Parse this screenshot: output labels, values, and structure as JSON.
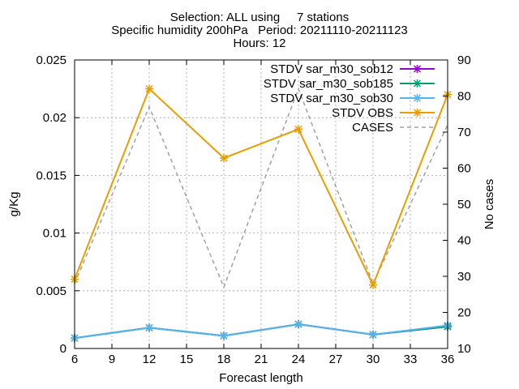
{
  "chart_data": {
    "type": "line",
    "title_lines": [
      "Selection: ALL using     7 stations",
      "Specific humidity 200hPa   Period: 20211110-20211123",
      "Hours: 12"
    ],
    "xlabel": "Forecast length",
    "ylabel": "g/Kg",
    "y2label": "No cases",
    "x": [
      6,
      12,
      18,
      24,
      30,
      36
    ],
    "xlim": [
      6,
      36
    ],
    "xticks": [
      6,
      9,
      12,
      15,
      18,
      21,
      24,
      27,
      30,
      33,
      36
    ],
    "ylim": [
      0,
      0.025
    ],
    "yticks": [
      0,
      0.005,
      0.01,
      0.015,
      0.02,
      0.025
    ],
    "ytick_labels": [
      "0",
      "0.005",
      "0.01",
      "0.015",
      "0.02",
      "0.025"
    ],
    "y2lim": [
      10,
      90
    ],
    "y2ticks": [
      10,
      20,
      30,
      40,
      50,
      60,
      70,
      80,
      90
    ],
    "grid": true,
    "legend_position": "top-right",
    "series": [
      {
        "name": "STDV sar_m30_sob12",
        "axis": "y",
        "color": "#9400d3",
        "marker": "x",
        "dash": false,
        "values": [
          0.0009,
          0.0018,
          0.0011,
          0.0021,
          0.0012,
          0.0019
        ]
      },
      {
        "name": "STDV sar_m30_sob185",
        "axis": "y",
        "color": "#009e73",
        "marker": "x",
        "dash": false,
        "values": [
          0.0009,
          0.0018,
          0.0011,
          0.0021,
          0.0012,
          0.0019
        ]
      },
      {
        "name": "STDV sar_m30_sob30",
        "axis": "y",
        "color": "#56b4e9",
        "marker": "x",
        "dash": false,
        "values": [
          0.0009,
          0.0018,
          0.0011,
          0.0021,
          0.0012,
          0.002
        ]
      },
      {
        "name": "STDV OBS",
        "axis": "y",
        "color": "#e69f00",
        "marker": "x",
        "dash": false,
        "values": [
          0.006,
          0.0225,
          0.0165,
          0.019,
          0.0055,
          0.022
        ]
      },
      {
        "name": "CASES",
        "axis": "y2",
        "color": "#a0a0a0",
        "marker": "none",
        "dash": true,
        "values": [
          28,
          77,
          27,
          82,
          28,
          72
        ]
      }
    ]
  }
}
